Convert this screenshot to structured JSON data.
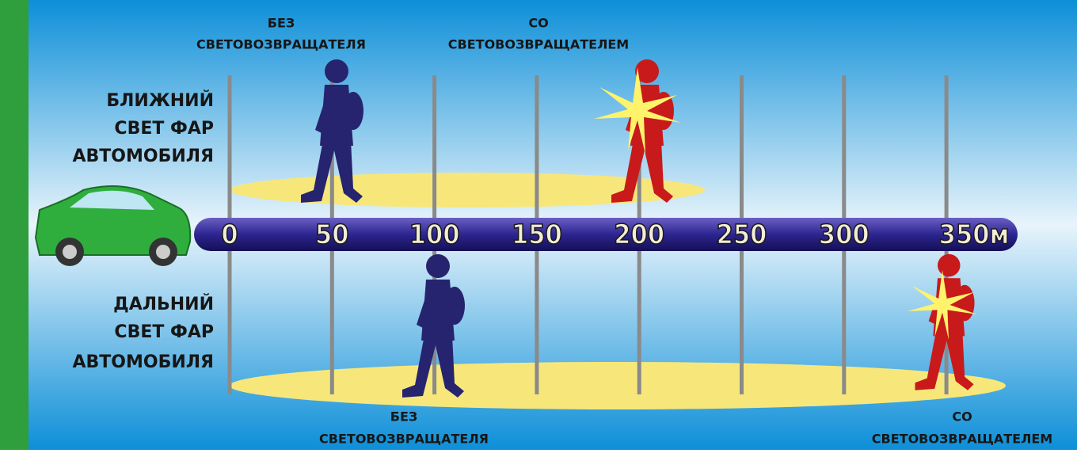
{
  "top": {
    "label": [
      "БЛИЖНИЙ",
      "СВЕТ ФАР",
      "АВТОМОБИЛЯ"
    ],
    "without": [
      "БЕЗ",
      "СВЕТОВОЗВРАЩАТЕЛЯ"
    ],
    "with": [
      "СО",
      "СВЕТОВОЗВРАЩАТЕЛЕМ"
    ]
  },
  "bottom": {
    "label": [
      "ДАЛЬНИЙ",
      "СВЕТ ФАР",
      "АВТОМОБИЛЯ"
    ],
    "without": [
      "БЕЗ",
      "СВЕТОВОЗВРАЩАТЕЛЯ"
    ],
    "with": [
      "СО",
      "СВЕТОВОЗВРАЩАТЕЛЕМ"
    ]
  },
  "scale": [
    "0",
    "50",
    "100",
    "150",
    "200",
    "250",
    "300",
    "350м"
  ]
}
